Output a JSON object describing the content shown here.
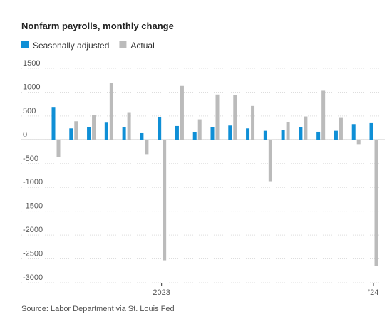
{
  "chart_data": {
    "type": "bar",
    "title": "Nonfarm payrolls, monthly change",
    "source": "Source: Labor Department via St. Louis Fed",
    "categories": [
      null,
      null,
      null,
      null,
      null,
      null,
      "2023",
      null,
      null,
      null,
      null,
      null,
      null,
      null,
      null,
      null,
      null,
      null,
      "’24"
    ],
    "series": [
      {
        "name": "Seasonally adjusted",
        "color": "#0f8fd6",
        "values": [
          690,
          240,
          260,
          360,
          260,
          140,
          480,
          290,
          160,
          270,
          300,
          240,
          190,
          210,
          260,
          170,
          190,
          330,
          350
        ]
      },
      {
        "name": "Actual",
        "color": "#bbbbbb",
        "values": [
          -360,
          390,
          520,
          1200,
          580,
          -300,
          -2530,
          1130,
          430,
          950,
          940,
          710,
          -870,
          370,
          490,
          1030,
          460,
          -90,
          -2650
        ]
      }
    ],
    "ylim": [
      -3000,
      1500
    ],
    "yticks": [
      1500,
      1000,
      500,
      0,
      -500,
      -1000,
      -1500,
      -2000,
      -2500,
      -3000
    ],
    "grid": true
  }
}
